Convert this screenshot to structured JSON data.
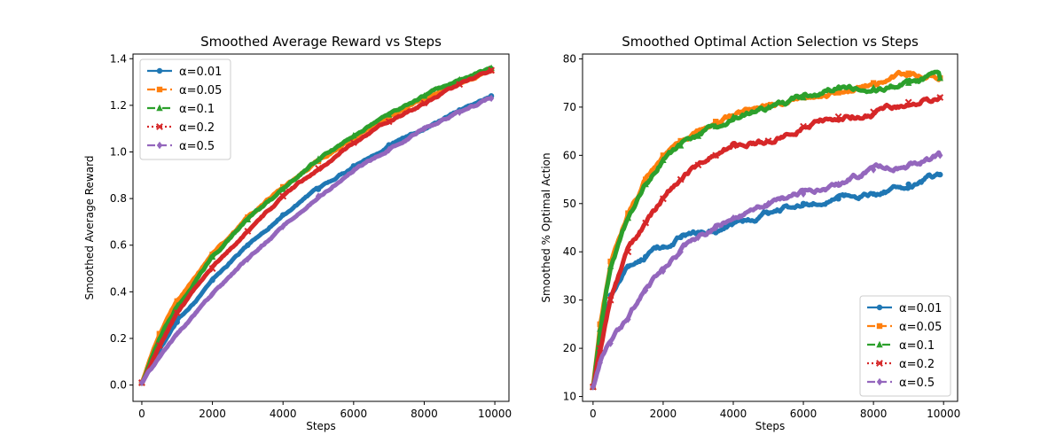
{
  "chart_data": [
    {
      "type": "line",
      "title": "Smoothed Average Reward vs Steps",
      "xlabel": "Steps",
      "ylabel": "Smoothed Average Reward",
      "xlim": [
        -250,
        10400
      ],
      "ylim": [
        -0.07,
        1.42
      ],
      "xticks": [
        0,
        2000,
        4000,
        6000,
        8000,
        10000
      ],
      "yticks": [
        0.0,
        0.2,
        0.4,
        0.6,
        0.8,
        1.0,
        1.2,
        1.4
      ],
      "ytick_labels": [
        "0.0",
        "0.2",
        "0.4",
        "0.6",
        "0.8",
        "1.0",
        "1.2",
        "1.4"
      ],
      "legend": "upper-left",
      "x": [
        0,
        500,
        1000,
        2000,
        3000,
        4000,
        5000,
        6000,
        7000,
        8000,
        9000,
        9900
      ],
      "series": [
        {
          "name": "α=0.01",
          "color": "#1f77b4",
          "marker": "circle",
          "dash": "solid",
          "values": [
            0.01,
            0.15,
            0.27,
            0.45,
            0.6,
            0.73,
            0.84,
            0.94,
            1.03,
            1.1,
            1.18,
            1.24
          ]
        },
        {
          "name": "α=0.05",
          "color": "#ff7f0e",
          "marker": "square",
          "dash": "dashed",
          "values": [
            0.01,
            0.22,
            0.36,
            0.56,
            0.72,
            0.85,
            0.96,
            1.06,
            1.15,
            1.23,
            1.3,
            1.35
          ]
        },
        {
          "name": "α=0.1",
          "color": "#2ca02c",
          "marker": "triangle",
          "dash": "dashdot",
          "values": [
            0.01,
            0.2,
            0.34,
            0.55,
            0.71,
            0.84,
            0.97,
            1.07,
            1.16,
            1.24,
            1.31,
            1.36
          ]
        },
        {
          "name": "α=0.2",
          "color": "#d62728",
          "marker": "x",
          "dash": "dotted",
          "values": [
            0.01,
            0.17,
            0.31,
            0.5,
            0.66,
            0.81,
            0.93,
            1.04,
            1.13,
            1.21,
            1.29,
            1.35
          ]
        },
        {
          "name": "α=0.5",
          "color": "#9467bd",
          "marker": "diamond",
          "dash": "dashed",
          "values": [
            0.01,
            0.12,
            0.22,
            0.39,
            0.54,
            0.68,
            0.81,
            0.92,
            1.01,
            1.1,
            1.17,
            1.23
          ]
        }
      ]
    },
    {
      "type": "line",
      "title": "Smoothed Optimal Action Selection vs Steps",
      "xlabel": "Steps",
      "ylabel": "Smoothed % Optimal Action",
      "xlim": [
        -300,
        10400
      ],
      "ylim": [
        9,
        81
      ],
      "xticks": [
        0,
        2000,
        4000,
        6000,
        8000,
        10000
      ],
      "yticks": [
        10,
        20,
        30,
        40,
        50,
        60,
        70,
        80
      ],
      "ytick_labels": [
        "10",
        "20",
        "30",
        "40",
        "50",
        "60",
        "70",
        "80"
      ],
      "legend": "lower-right",
      "x": [
        0,
        200,
        500,
        1000,
        1500,
        2000,
        2500,
        3000,
        3500,
        4000,
        5000,
        6000,
        7000,
        8000,
        9000,
        9900
      ],
      "series": [
        {
          "name": "α=0.01",
          "color": "#1f77b4",
          "marker": "circle",
          "dash": "solid",
          "values": [
            12,
            22,
            31,
            37,
            39,
            41,
            43,
            44,
            44,
            46,
            48,
            50,
            51,
            52,
            54,
            56
          ]
        },
        {
          "name": "α=0.05",
          "color": "#ff7f0e",
          "marker": "square",
          "dash": "dashed",
          "values": [
            12,
            25,
            38,
            48,
            55,
            60,
            63,
            65,
            67,
            68,
            70,
            72,
            73,
            75,
            77,
            76
          ]
        },
        {
          "name": "α=0.1",
          "color": "#2ca02c",
          "marker": "triangle",
          "dash": "dashdot",
          "values": [
            12,
            24,
            37,
            47,
            54,
            59,
            62,
            64,
            66,
            68,
            70,
            72,
            74,
            74,
            75,
            76
          ]
        },
        {
          "name": "α=0.2",
          "color": "#d62728",
          "marker": "x",
          "dash": "dotted",
          "values": [
            12,
            20,
            30,
            40,
            46,
            51,
            55,
            58,
            60,
            62,
            63,
            66,
            68,
            69,
            71,
            72
          ]
        },
        {
          "name": "α=0.5",
          "color": "#9467bd",
          "marker": "diamond",
          "dash": "dashed",
          "values": [
            12,
            17,
            21,
            26,
            32,
            36,
            40,
            43,
            45,
            47,
            50,
            52,
            54,
            57,
            58,
            60
          ]
        }
      ]
    }
  ]
}
